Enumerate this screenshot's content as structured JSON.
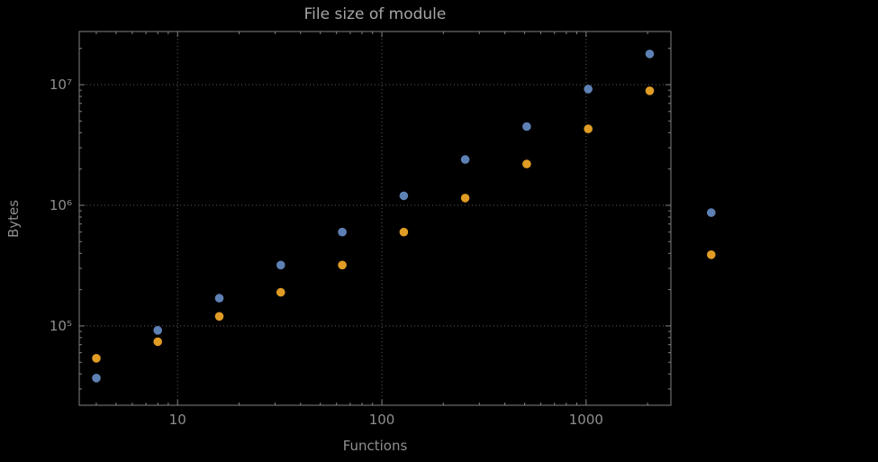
{
  "figure": {
    "background": "#000000"
  },
  "chart_data": {
    "type": "scatter",
    "title": "File size of module",
    "xlabel": "Functions",
    "ylabel": "Bytes",
    "x_scale": "log",
    "y_scale": "log",
    "xlim": [
      3.3,
      2600
    ],
    "ylim": [
      22000,
      27600000
    ],
    "grid": {
      "on": true,
      "style": "dotted",
      "color": "#5c5c5c"
    },
    "frame_color": "#828282",
    "label_color": "#8f8f8f",
    "title_color": "#a6a6a6",
    "legend": "none",
    "clipping": false,
    "x_ticks": [
      {
        "value": 10,
        "label": "10"
      },
      {
        "value": 100,
        "label": "100"
      },
      {
        "value": 1000,
        "label": "1000"
      }
    ],
    "y_ticks": [
      {
        "value": 100000,
        "label": "10⁵"
      },
      {
        "value": 1000000,
        "label": "10⁶"
      },
      {
        "value": 10000000,
        "label": "10⁷"
      }
    ],
    "x": [
      4,
      8,
      16,
      32,
      64,
      128,
      256,
      512,
      1024,
      2048,
      4096
    ],
    "series": [
      {
        "name": "series-1-blue",
        "color": "#5e81b5",
        "values": [
          37000,
          92000,
          170000,
          320000,
          600000,
          1200000,
          2400000,
          4500000,
          9200000,
          18000000,
          870000
        ]
      },
      {
        "name": "series-2-orange",
        "color": "#e09c24",
        "values": [
          54000,
          74000,
          120000,
          190000,
          320000,
          600000,
          1150000,
          2200000,
          4300000,
          8900000,
          390000
        ]
      }
    ]
  }
}
